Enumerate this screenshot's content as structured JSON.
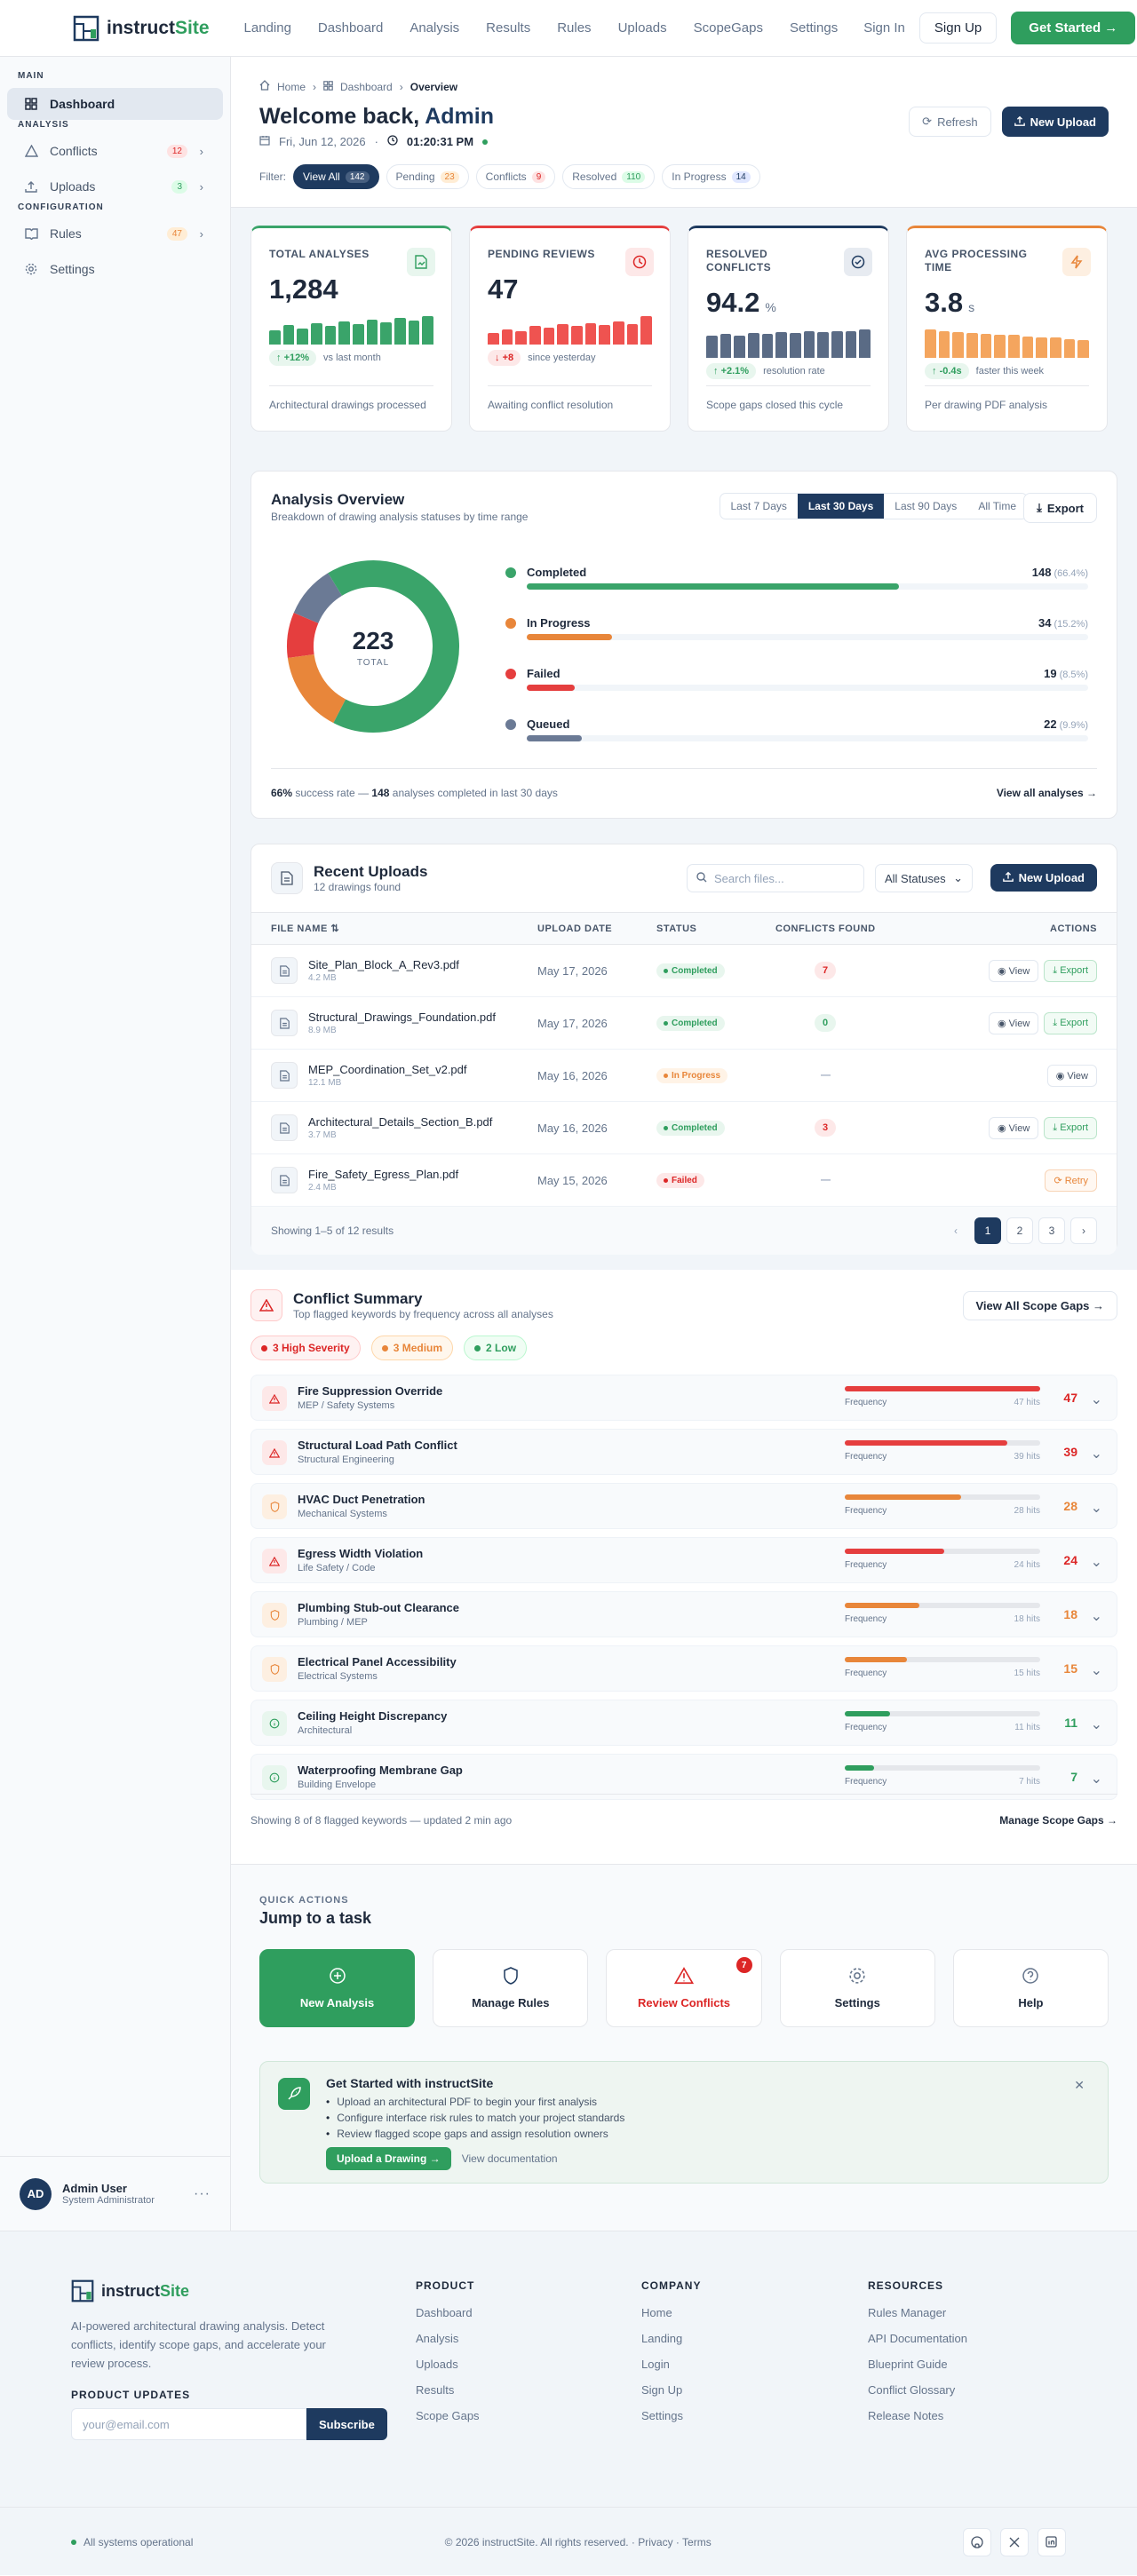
{
  "brand": {
    "prefix": "instruct",
    "suffix": "Site"
  },
  "nav": {
    "links": [
      "Landing",
      "Dashboard",
      "Analysis",
      "Results",
      "Rules",
      "Uploads",
      "ScopeGaps",
      "Settings"
    ],
    "sign_in": "Sign In",
    "sign_up": "Sign Up",
    "cta": "Get Started →"
  },
  "sidebar": {
    "sections": [
      "Main",
      "Analysis",
      "Configuration"
    ],
    "items": [
      {
        "label": "Dashboard",
        "icon": "grid-icon"
      },
      {
        "label": "Conflicts",
        "icon": "alert-triangle-icon",
        "badge": "12"
      },
      {
        "label": "Uploads",
        "icon": "upload-icon",
        "badge": "3"
      },
      {
        "label": "Rules",
        "icon": "book-icon",
        "badge": "47"
      },
      {
        "label": "Settings",
        "icon": "gear-icon"
      }
    ],
    "user": {
      "initials": "AD",
      "name": "Admin User",
      "role": "System Administrator"
    }
  },
  "header": {
    "breadcrumb": [
      "Home",
      "Dashboard",
      "Overview"
    ],
    "title_prefix": "Welcome back,",
    "title_name": "Admin",
    "date": "Fri, Jun 12, 2026",
    "time": "01:20:31 PM",
    "refresh": "Refresh",
    "new_upload": "New Upload"
  },
  "filters": {
    "label": "Filter:",
    "items": [
      {
        "label": "View All",
        "count": "142"
      },
      {
        "label": "Pending",
        "count": "23"
      },
      {
        "label": "Conflicts",
        "count": "9"
      },
      {
        "label": "Resolved",
        "count": "110"
      },
      {
        "label": "In Progress",
        "count": "14"
      }
    ]
  },
  "stats": [
    {
      "label": "Total Analyses",
      "value": "1,284",
      "unit": "",
      "trend": "+12%",
      "trend_note": "vs last month",
      "note": "Architectural drawings processed",
      "color": "#3aa46a",
      "spark": [
        40,
        55,
        45,
        60,
        52,
        65,
        58,
        70,
        62,
        75,
        68,
        80
      ]
    },
    {
      "label": "Pending Reviews",
      "value": "47",
      "unit": "",
      "trend": "+8",
      "trend_note": "since yesterday",
      "note": "Awaiting conflict resolution",
      "color": "#ef5350",
      "spark": [
        35,
        45,
        40,
        55,
        50,
        60,
        55,
        65,
        58,
        70,
        62,
        85
      ]
    },
    {
      "label": "Resolved Conflicts",
      "value": "94.2",
      "unit": "%",
      "trend": "+2.1%",
      "trend_note": "resolution rate",
      "note": "Scope gaps closed this cycle",
      "color": "#5a6b85",
      "spark": [
        60,
        65,
        62,
        68,
        66,
        70,
        68,
        72,
        70,
        74,
        73,
        78
      ]
    },
    {
      "label": "Avg Processing Time",
      "value": "3.8",
      "unit": "s",
      "trend": "-0.4s",
      "trend_note": "faster this week",
      "note": "Per drawing PDF analysis",
      "color": "#f4a55e",
      "spark": [
        85,
        80,
        78,
        75,
        72,
        70,
        68,
        65,
        62,
        60,
        56,
        52
      ]
    }
  ],
  "overview": {
    "title": "Analysis Overview",
    "subtitle": "Breakdown of drawing analysis statuses by time range",
    "ranges": [
      "Last 7 Days",
      "Last 30 Days",
      "Last 90 Days",
      "All Time"
    ],
    "export": "Export",
    "total": "223",
    "total_label": "TOTAL",
    "statuses": [
      {
        "name": "Completed",
        "value": 148,
        "pct": "(66.4%)",
        "color": "#3aa46a"
      },
      {
        "name": "In Progress",
        "value": 34,
        "pct": "(15.2%)",
        "color": "#e8863a"
      },
      {
        "name": "Failed",
        "value": 19,
        "pct": "(8.5%)",
        "color": "#e53e3e"
      },
      {
        "name": "Queued",
        "value": 22,
        "pct": "(9.9%)",
        "color": "#6b7a95"
      }
    ],
    "foot_rate": "66%",
    "foot_text1": "success rate —",
    "foot_count": "148",
    "foot_text2": "analyses completed in last 30 days",
    "view_all": "View all analyses →"
  },
  "uploads": {
    "title": "Recent Uploads",
    "subtitle": "12 drawings found",
    "search_placeholder": "Search files...",
    "status_filter": "All Statuses",
    "new_upload": "New Upload",
    "columns": [
      "File Name ⇅",
      "Upload Date",
      "Status",
      "Conflicts Found",
      "Actions"
    ],
    "rows": [
      {
        "name": "Site_Plan_Block_A_Rev3.pdf",
        "size": "4.2 MB",
        "date": "May 17, 2026",
        "status": "Completed",
        "conflicts": "7",
        "actions": [
          "View",
          "Export"
        ]
      },
      {
        "name": "Structural_Drawings_Foundation.pdf",
        "size": "8.9 MB",
        "date": "May 17, 2026",
        "status": "Completed",
        "conflicts": "0",
        "actions": [
          "View",
          "Export"
        ]
      },
      {
        "name": "MEP_Coordination_Set_v2.pdf",
        "size": "12.1 MB",
        "date": "May 16, 2026",
        "status": "In Progress",
        "conflicts": "—",
        "actions": [
          "View"
        ]
      },
      {
        "name": "Architectural_Details_Section_B.pdf",
        "size": "3.7 MB",
        "date": "May 16, 2026",
        "status": "Completed",
        "conflicts": "3",
        "actions": [
          "View",
          "Export"
        ]
      },
      {
        "name": "Fire_Safety_Egress_Plan.pdf",
        "size": "2.4 MB",
        "date": "May 15, 2026",
        "status": "Failed",
        "conflicts": "—",
        "actions": [
          "Retry"
        ]
      }
    ],
    "showing": "Showing 1–5 of 12 results",
    "pages": [
      "1",
      "2",
      "3"
    ]
  },
  "conflicts": {
    "title": "Conflict Summary",
    "subtitle": "Top flagged keywords by frequency across all analyses",
    "view_all": "View All Scope Gaps →",
    "severity": [
      {
        "label": "3 High Severity",
        "color": "#dc2626",
        "bg": "#fef2f2"
      },
      {
        "label": "3 Medium",
        "color": "#e8863a",
        "bg": "#fff7ed"
      },
      {
        "label": "2 Low",
        "color": "#2f9e5e",
        "bg": "#f0fdf4"
      }
    ],
    "freq_label": "Frequency",
    "items": [
      {
        "name": "Fire Suppression Override",
        "cat": "MEP / Safety Systems",
        "hits": "47 hits",
        "value": "47",
        "level": "high"
      },
      {
        "name": "Structural Load Path Conflict",
        "cat": "Structural Engineering",
        "hits": "39 hits",
        "value": "39",
        "level": "high"
      },
      {
        "name": "HVAC Duct Penetration",
        "cat": "Mechanical Systems",
        "hits": "28 hits",
        "value": "28",
        "level": "med"
      },
      {
        "name": "Egress Width Violation",
        "cat": "Life Safety / Code",
        "hits": "24 hits",
        "value": "24",
        "level": "high"
      },
      {
        "name": "Plumbing Stub-out Clearance",
        "cat": "Plumbing / MEP",
        "hits": "18 hits",
        "value": "18",
        "level": "med"
      },
      {
        "name": "Electrical Panel Accessibility",
        "cat": "Electrical Systems",
        "hits": "15 hits",
        "value": "15",
        "level": "med"
      },
      {
        "name": "Ceiling Height Discrepancy",
        "cat": "Architectural",
        "hits": "11 hits",
        "value": "11",
        "level": "low"
      },
      {
        "name": "Waterproofing Membrane Gap",
        "cat": "Building Envelope",
        "hits": "7 hits",
        "value": "7",
        "level": "low"
      }
    ],
    "foot": "Showing 8 of 8 flagged keywords — updated 2 min ago",
    "manage": "Manage Scope Gaps →"
  },
  "quick": {
    "label": "QUICK ACTIONS",
    "title": "Jump to a task",
    "items": [
      {
        "label": "New Analysis"
      },
      {
        "label": "Manage Rules"
      },
      {
        "label": "Review Conflicts",
        "badge": "7"
      },
      {
        "label": "Settings"
      },
      {
        "label": "Help"
      }
    ]
  },
  "getstarted": {
    "title": "Get Started with instructSite",
    "items": [
      "Upload an architectural PDF to begin your first analysis",
      "Configure interface risk rules to match your project standards",
      "Review flagged scope gaps and assign resolution owners"
    ],
    "cta": "Upload a Drawing →",
    "docs": "View documentation"
  },
  "footer": {
    "desc": "AI-powered architectural drawing analysis. Detect conflicts, identify scope gaps, and accelerate your review process.",
    "updates": "PRODUCT UPDATES",
    "email_placeholder": "your@email.com",
    "subscribe": "Subscribe",
    "cols": [
      {
        "title": "PRODUCT",
        "links": [
          "Dashboard",
          "Analysis",
          "Uploads",
          "Results",
          "Scope Gaps"
        ]
      },
      {
        "title": "COMPANY",
        "links": [
          "Home",
          "Landing",
          "Login",
          "Sign Up",
          "Settings"
        ]
      },
      {
        "title": "RESOURCES",
        "links": [
          "Rules Manager",
          "API Documentation",
          "Blueprint Guide",
          "Conflict Glossary",
          "Release Notes"
        ]
      }
    ],
    "status": "All systems operational",
    "copyright": "© 2026 instructSite. All rights reserved. · Privacy · Terms"
  }
}
